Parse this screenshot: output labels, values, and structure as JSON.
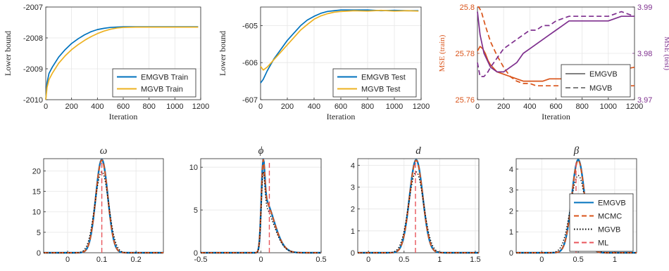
{
  "colors": {
    "emgvb": "#0072BD",
    "mgvb": "#EDB120",
    "mcmc": "#D95319",
    "ml": "#E8555B",
    "black": "#000000",
    "purple": "#7E2F8E",
    "grid": "#e6e6e6"
  },
  "chart_data": [
    {
      "id": "lb-train",
      "type": "line",
      "xlabel": "Iteration",
      "ylabel": "Lower bound",
      "xlim": [
        0,
        1200
      ],
      "ylim": [
        -2010,
        -2007
      ],
      "xticks": [
        "0",
        "200",
        "400",
        "600",
        "800",
        "1000",
        "1200"
      ],
      "yticks": [
        "-2010",
        "-2009",
        "-2008",
        "-2007"
      ],
      "grid": true,
      "legend_position": "bottom-right",
      "series": [
        {
          "name": "EMGVB Train",
          "color_key": "emgvb",
          "x": [
            0,
            10,
            25,
            50,
            100,
            150,
            200,
            250,
            300,
            350,
            400,
            450,
            500,
            550,
            600,
            700,
            800,
            900,
            1000,
            1100,
            1180
          ],
          "y": [
            -2010,
            -2009.45,
            -2009.15,
            -2008.95,
            -2008.62,
            -2008.38,
            -2008.18,
            -2008.03,
            -2007.9,
            -2007.8,
            -2007.73,
            -2007.69,
            -2007.66,
            -2007.65,
            -2007.64,
            -2007.64,
            -2007.64,
            -2007.64,
            -2007.64,
            -2007.64,
            -2007.64
          ]
        },
        {
          "name": "MGVB Train",
          "color_key": "mgvb",
          "x": [
            0,
            10,
            25,
            50,
            100,
            150,
            200,
            250,
            300,
            350,
            400,
            450,
            500,
            550,
            600,
            700,
            800,
            900,
            1000,
            1100,
            1180
          ],
          "y": [
            -2010,
            -2009.6,
            -2009.35,
            -2009.15,
            -2008.82,
            -2008.58,
            -2008.38,
            -2008.22,
            -2008.08,
            -2007.96,
            -2007.86,
            -2007.78,
            -2007.72,
            -2007.68,
            -2007.66,
            -2007.65,
            -2007.65,
            -2007.65,
            -2007.65,
            -2007.65,
            -2007.65
          ]
        }
      ]
    },
    {
      "id": "lb-test",
      "type": "line",
      "xlabel": "Iteration",
      "ylabel": "Lower bound",
      "xlim": [
        0,
        1200
      ],
      "ylim": [
        -607,
        -604.5
      ],
      "xticks": [
        "0",
        "200",
        "400",
        "600",
        "800",
        "1000",
        "1200"
      ],
      "yticks": [
        "-607",
        "-606",
        "-605"
      ],
      "grid": true,
      "legend_position": "bottom-right",
      "series": [
        {
          "name": "EMGVB Test",
          "color_key": "emgvb",
          "x": [
            0,
            20,
            50,
            100,
            150,
            200,
            250,
            300,
            350,
            400,
            450,
            500,
            550,
            600,
            700,
            800,
            900,
            1000,
            1100,
            1180
          ],
          "y": [
            -606.55,
            -606.45,
            -606.22,
            -605.9,
            -605.65,
            -605.4,
            -605.2,
            -605.0,
            -604.85,
            -604.75,
            -604.67,
            -604.62,
            -604.6,
            -604.58,
            -604.58,
            -604.58,
            -604.6,
            -604.59,
            -604.6,
            -604.6
          ]
        },
        {
          "name": "MGVB Test",
          "color_key": "mgvb",
          "x": [
            0,
            20,
            50,
            100,
            150,
            200,
            250,
            300,
            350,
            400,
            450,
            500,
            550,
            600,
            700,
            800,
            900,
            1000,
            1100,
            1180
          ],
          "y": [
            -606.1,
            -606.2,
            -606.12,
            -605.92,
            -605.72,
            -605.52,
            -605.32,
            -605.12,
            -604.97,
            -604.83,
            -604.74,
            -604.68,
            -604.64,
            -604.62,
            -604.6,
            -604.61,
            -604.59,
            -604.61,
            -604.6,
            -604.61
          ]
        }
      ]
    },
    {
      "id": "mse",
      "type": "line",
      "xlabel": "Iteration",
      "ylabel_left": "MSE (train)",
      "ylabel_right": "MSE (test)",
      "xlim": [
        0,
        1200
      ],
      "ylim_left": [
        25.76,
        25.8
      ],
      "ylim_right": [
        3.97,
        3.99
      ],
      "xticks": [
        "0",
        "200",
        "400",
        "600",
        "800",
        "1000",
        "1200"
      ],
      "yticks_left": [
        "25.76",
        "25.78",
        "25.8"
      ],
      "yticks_right": [
        "3.97",
        "3.98",
        "3.99"
      ],
      "grid": true,
      "legend_position": "bottom-right",
      "legend": [
        {
          "name": "EMGVB",
          "style": "solid"
        },
        {
          "name": "MGVB",
          "style": "dashed"
        }
      ],
      "series": [
        {
          "name": "EMGVB train",
          "axis": "left",
          "color_key": "mcmc",
          "style": "solid",
          "x": [
            0,
            20,
            40,
            60,
            80,
            100,
            150,
            200,
            250,
            300,
            350,
            400,
            450,
            500,
            550,
            600,
            700,
            800,
            900,
            1000,
            1100,
            1200
          ],
          "y": [
            25.781,
            25.783,
            25.782,
            25.78,
            25.777,
            25.775,
            25.772,
            25.771,
            25.77,
            25.769,
            25.768,
            25.768,
            25.768,
            25.768,
            25.769,
            25.769,
            25.769,
            25.769,
            25.77,
            25.772,
            25.773,
            25.774
          ]
        },
        {
          "name": "MGVB train",
          "axis": "left",
          "color_key": "mcmc",
          "style": "dashed",
          "x": [
            0,
            10,
            30,
            60,
            100,
            150,
            200,
            250,
            300,
            350,
            400,
            450,
            500,
            550,
            600,
            700,
            800,
            900,
            1000,
            1100,
            1200
          ],
          "y": [
            25.8,
            25.8,
            25.798,
            25.792,
            25.785,
            25.779,
            25.774,
            25.77,
            25.768,
            25.767,
            25.767,
            25.766,
            25.766,
            25.766,
            25.766,
            25.766,
            25.766,
            25.766,
            25.766,
            25.766,
            25.766
          ]
        },
        {
          "name": "EMGVB test",
          "axis": "right",
          "color_key": "purple",
          "style": "solid",
          "x": [
            0,
            20,
            50,
            100,
            150,
            200,
            250,
            300,
            350,
            400,
            450,
            500,
            550,
            600,
            650,
            700,
            800,
            900,
            1000,
            1100,
            1200
          ],
          "y": [
            3.989,
            3.984,
            3.98,
            3.977,
            3.976,
            3.976,
            3.977,
            3.978,
            3.98,
            3.981,
            3.982,
            3.983,
            3.984,
            3.985,
            3.986,
            3.987,
            3.987,
            3.987,
            3.987,
            3.988,
            3.988
          ]
        },
        {
          "name": "MGVB test",
          "axis": "right",
          "color_key": "purple",
          "style": "dashed",
          "x": [
            0,
            20,
            50,
            80,
            100,
            150,
            200,
            250,
            300,
            350,
            400,
            450,
            500,
            550,
            600,
            700,
            800,
            900,
            1000,
            1100,
            1200
          ],
          "y": [
            3.978,
            3.975,
            3.975,
            3.976,
            3.977,
            3.979,
            3.981,
            3.982,
            3.983,
            3.984,
            3.985,
            3.985,
            3.986,
            3.986,
            3.987,
            3.988,
            3.988,
            3.988,
            3.988,
            3.989,
            3.988
          ]
        }
      ]
    },
    {
      "id": "omega",
      "type": "line",
      "title": "ω",
      "xlim": [
        -0.07,
        0.28
      ],
      "ylim": [
        0,
        23
      ],
      "xticks_values": [
        0,
        0.1,
        0.2
      ],
      "xticks": [
        "0",
        "0.1",
        "0.2"
      ],
      "yticks_values": [
        0,
        5,
        10,
        15,
        20
      ],
      "yticks": [
        "0",
        "5",
        "10",
        "15",
        "20"
      ],
      "grid": true,
      "ml": 0.1,
      "density": {
        "shape": "gauss",
        "mu": 0.1,
        "sigma": 0.0175,
        "peak": 22.8,
        "mgvb_sigma": 0.02,
        "mgvb_peak": 19.8
      }
    },
    {
      "id": "phi",
      "type": "line",
      "title": "ϕ",
      "xlim": [
        -0.5,
        0.5
      ],
      "ylim": [
        0,
        11
      ],
      "xticks_values": [
        -0.5,
        0,
        0.5
      ],
      "xticks": [
        "-0.5",
        "0",
        "0.5"
      ],
      "yticks_values": [
        0,
        5,
        10
      ],
      "yticks": [
        "0",
        "5",
        "10"
      ],
      "grid": true,
      "ml": 0.07,
      "density": {
        "shape": "skew",
        "mu": 0.02,
        "peak": 11,
        "mgvb_peak": 9.5
      }
    },
    {
      "id": "d",
      "type": "line",
      "title": "d",
      "xlim": [
        -0.15,
        1.55
      ],
      "ylim": [
        0,
        4.3
      ],
      "xticks_values": [
        0,
        0.5,
        1,
        1.5
      ],
      "xticks": [
        "0",
        "0.5",
        "1",
        "1.5"
      ],
      "yticks_values": [
        0,
        1,
        2,
        3,
        4
      ],
      "yticks": [
        "0",
        "1",
        "2",
        "3",
        "4"
      ],
      "grid": true,
      "ml": 0.66,
      "density": {
        "shape": "gauss",
        "mu": 0.67,
        "sigma": 0.093,
        "peak": 4.25,
        "mgvb_sigma": 0.105,
        "mgvb_peak": 3.7
      }
    },
    {
      "id": "beta",
      "type": "line",
      "title": "β",
      "xlim": [
        -0.35,
        1.3
      ],
      "ylim": [
        0,
        4.5
      ],
      "xticks_values": [
        0,
        0.5,
        1
      ],
      "xticks": [
        "0",
        "0.5",
        "1"
      ],
      "yticks_values": [
        0,
        1,
        2,
        3,
        4
      ],
      "yticks": [
        "0",
        "1",
        "2",
        "3",
        "4"
      ],
      "grid": true,
      "ml": 0.47,
      "legend_position": "right",
      "legend": [
        {
          "name": "EMGVB",
          "color_key": "emgvb",
          "style": "solid"
        },
        {
          "name": "MCMC",
          "color_key": "mcmc",
          "style": "dashed"
        },
        {
          "name": "MGVB",
          "color_key": "black",
          "style": "dotted"
        },
        {
          "name": "ML",
          "color_key": "ml",
          "style": "dashed"
        }
      ],
      "density": {
        "shape": "gauss",
        "mu": 0.5,
        "sigma": 0.088,
        "peak": 4.45,
        "mgvb_sigma": 0.105,
        "mgvb_peak": 3.7
      }
    }
  ]
}
